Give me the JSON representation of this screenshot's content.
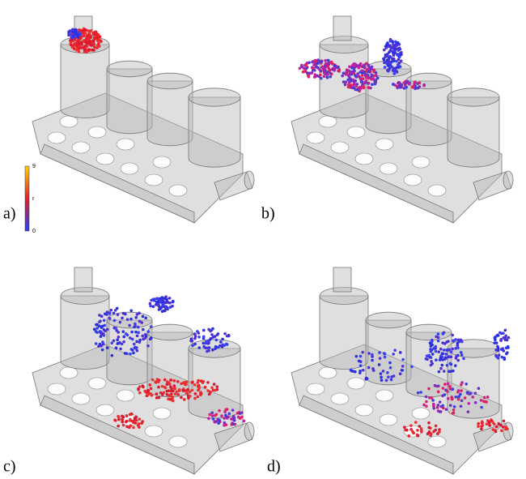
{
  "panels": [
    {
      "label": "a)"
    },
    {
      "label": "b)"
    },
    {
      "label": "c)"
    },
    {
      "label": "d)"
    }
  ],
  "colorbar": {
    "top": "9",
    "middle": "r",
    "bottom": "0"
  }
}
